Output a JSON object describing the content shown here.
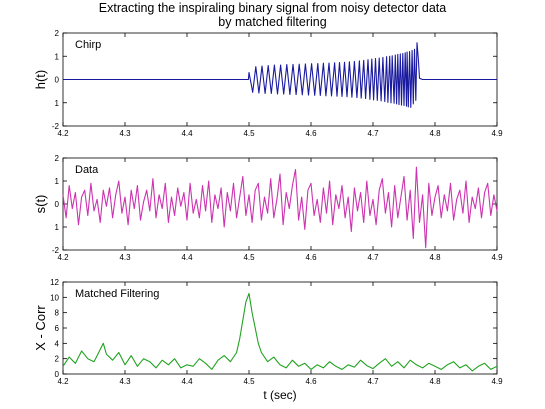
{
  "title": [
    "Extracting the inspiraling binary signal from noisy detector data",
    "by matched filtering"
  ],
  "xlabel": "t (sec)",
  "chart_data": [
    {
      "type": "line",
      "annotation": "Chirp",
      "ylabel": "h(t)",
      "color": "#1a1aa0",
      "xlim": [
        4.2,
        4.9
      ],
      "ylim": [
        -2,
        2
      ],
      "xticks": [
        "4.2",
        "4.3",
        "4.4",
        "4.5",
        "4.6",
        "4.7",
        "4.8",
        "4.9"
      ],
      "yticks": [
        "-2",
        "1",
        "0",
        "1",
        "2"
      ],
      "series": [
        {
          "x": [
            4.2,
            4.499,
            4.5,
            4.506,
            4.511,
            4.516,
            4.521,
            4.526,
            4.531,
            4.536,
            4.541,
            4.546,
            4.551,
            4.556,
            4.561,
            4.566,
            4.571,
            4.576,
            4.581,
            4.586,
            4.591,
            4.596,
            4.601,
            4.606,
            4.611,
            4.615,
            4.62,
            4.624,
            4.629,
            4.633,
            4.638,
            4.642,
            4.646,
            4.65,
            4.654,
            4.658,
            4.662,
            4.666,
            4.67,
            4.674,
            4.678,
            4.681,
            4.685,
            4.688,
            4.692,
            4.695,
            4.698,
            4.701,
            4.704,
            4.707,
            4.71,
            4.713,
            4.716,
            4.719,
            4.722,
            4.724,
            4.727,
            4.729,
            4.731,
            4.734,
            4.736,
            4.738,
            4.74,
            4.742,
            4.744,
            4.746,
            4.748,
            4.75,
            4.752,
            4.754,
            4.755,
            4.757,
            4.759,
            4.761,
            4.763,
            4.765,
            4.767,
            4.769,
            4.771,
            4.773,
            4.775,
            4.78,
            4.9
          ],
          "y": [
            0,
            0,
            0.3,
            -0.55,
            0.55,
            -0.58,
            0.58,
            -0.6,
            0.6,
            -0.6,
            0.62,
            -0.62,
            0.62,
            -0.63,
            0.64,
            -0.64,
            0.65,
            -0.65,
            0.66,
            -0.66,
            0.67,
            -0.67,
            0.68,
            -0.68,
            0.69,
            -0.69,
            0.7,
            -0.7,
            0.71,
            -0.71,
            0.72,
            -0.72,
            0.73,
            -0.73,
            0.74,
            -0.74,
            0.76,
            -0.76,
            0.78,
            -0.78,
            0.8,
            -0.8,
            0.82,
            -0.82,
            0.85,
            -0.85,
            0.88,
            -0.88,
            0.9,
            -0.9,
            0.92,
            -0.92,
            0.95,
            -0.95,
            0.98,
            -0.98,
            1.0,
            -1.0,
            1.02,
            -1.02,
            1.05,
            -1.05,
            1.08,
            -1.08,
            1.1,
            -1.1,
            1.12,
            -1.12,
            1.15,
            -1.15,
            1.18,
            -1.18,
            1.2,
            -1.2,
            1.25,
            -1.05,
            1.3,
            -0.9,
            1.58,
            0.9,
            0.05,
            0,
            0
          ]
        }
      ]
    },
    {
      "type": "line",
      "annotation": "Data",
      "ylabel": "s(t)",
      "color": "#cc33b0",
      "xlim": [
        4.2,
        4.9
      ],
      "ylim": [
        -2,
        2
      ],
      "xticks": [
        "4.2",
        "4.3",
        "4.4",
        "4.5",
        "4.6",
        "4.7",
        "4.8",
        "4.9"
      ],
      "yticks": [
        "-2",
        "1",
        "0",
        "1",
        "2"
      ],
      "series": [
        {
          "x": [
            4.2,
            4.205,
            4.21,
            4.215,
            4.22,
            4.225,
            4.23,
            4.235,
            4.24,
            4.245,
            4.25,
            4.255,
            4.26,
            4.265,
            4.27,
            4.275,
            4.28,
            4.285,
            4.29,
            4.295,
            4.3,
            4.305,
            4.31,
            4.315,
            4.32,
            4.325,
            4.33,
            4.335,
            4.34,
            4.345,
            4.35,
            4.355,
            4.36,
            4.365,
            4.37,
            4.375,
            4.38,
            4.385,
            4.39,
            4.395,
            4.4,
            4.405,
            4.41,
            4.415,
            4.42,
            4.425,
            4.43,
            4.435,
            4.44,
            4.445,
            4.45,
            4.455,
            4.46,
            4.465,
            4.47,
            4.475,
            4.48,
            4.485,
            4.49,
            4.495,
            4.5,
            4.505,
            4.51,
            4.515,
            4.52,
            4.525,
            4.53,
            4.535,
            4.54,
            4.545,
            4.55,
            4.555,
            4.56,
            4.565,
            4.57,
            4.575,
            4.58,
            4.585,
            4.59,
            4.595,
            4.6,
            4.605,
            4.61,
            4.615,
            4.62,
            4.625,
            4.63,
            4.635,
            4.64,
            4.645,
            4.65,
            4.655,
            4.66,
            4.665,
            4.67,
            4.675,
            4.68,
            4.685,
            4.69,
            4.695,
            4.7,
            4.705,
            4.71,
            4.715,
            4.72,
            4.725,
            4.73,
            4.735,
            4.74,
            4.745,
            4.75,
            4.755,
            4.76,
            4.765,
            4.77,
            4.775,
            4.78,
            4.785,
            4.79,
            4.795,
            4.8,
            4.805,
            4.81,
            4.815,
            4.82,
            4.825,
            4.83,
            4.835,
            4.84,
            4.845,
            4.85,
            4.855,
            4.86,
            4.865,
            4.87,
            4.875,
            4.88,
            4.885,
            4.89,
            4.895,
            4.9
          ],
          "y": [
            0.4,
            -0.6,
            0.8,
            -0.2,
            0.5,
            -0.9,
            0.3,
            0.6,
            -0.5,
            0.9,
            -0.3,
            0.2,
            -0.8,
            0.6,
            -0.1,
            0.7,
            -0.6,
            0.4,
            1.0,
            -0.4,
            0.3,
            -0.9,
            0.6,
            -0.2,
            0.8,
            -0.7,
            0.1,
            0.6,
            -0.3,
            1.1,
            -0.6,
            0.4,
            -0.2,
            0.9,
            -0.8,
            0.3,
            -0.5,
            0.7,
            -0.1,
            0.5,
            -0.7,
            0.9,
            -0.4,
            0.2,
            -0.6,
            0.8,
            -0.3,
            1.0,
            -0.8,
            0.4,
            -0.2,
            0.7,
            -1.0,
            0.5,
            -0.3,
            0.9,
            -0.6,
            0.3,
            1.2,
            -0.5,
            0.4,
            -0.8,
            0.6,
            0.9,
            -0.7,
            0.3,
            -0.4,
            1.1,
            -0.6,
            0.2,
            1.3,
            -0.9,
            0.5,
            -0.2,
            0.8,
            1.5,
            -0.7,
            0.3,
            -1.1,
            0.6,
            0.9,
            -0.5,
            0.2,
            -0.8,
            0.7,
            -0.4,
            1.0,
            -0.9,
            0.4,
            -0.2,
            0.8,
            -0.6,
            0.3,
            -1.2,
            0.7,
            -0.3,
            0.5,
            -0.8,
            1.0,
            -0.5,
            0.2,
            -0.9,
            0.6,
            1.1,
            -0.4,
            0.5,
            -1.0,
            0.8,
            -0.6,
            0.3,
            1.2,
            -0.7,
            0.6,
            -1.5,
            1.6,
            -0.8,
            0.4,
            -1.9,
            0.9,
            -0.5,
            0.3,
            0.8,
            -0.6,
            0.4,
            -0.3,
            0.9,
            -0.7,
            0.2,
            0.6,
            -0.4,
            1.0,
            -0.8,
            0.3,
            -0.2,
            0.7,
            -0.6,
            0.5,
            0.9,
            -0.5,
            0.4,
            -0.3
          ]
        }
      ]
    },
    {
      "type": "line",
      "annotation": "Matched Filtering",
      "ylabel": "X - Corr",
      "color": "#22a322",
      "xlim": [
        4.2,
        4.9
      ],
      "ylim": [
        0,
        12
      ],
      "xticks": [
        "4.2",
        "4.3",
        "4.4",
        "4.5",
        "4.6",
        "4.7",
        "4.8",
        "4.9"
      ],
      "yticks": [
        "0",
        "2",
        "4",
        "6",
        "8",
        "10",
        "12"
      ],
      "series": [
        {
          "x": [
            4.2,
            4.21,
            4.22,
            4.23,
            4.24,
            4.25,
            4.26,
            4.265,
            4.27,
            4.28,
            4.29,
            4.3,
            4.31,
            4.32,
            4.33,
            4.34,
            4.35,
            4.36,
            4.37,
            4.38,
            4.39,
            4.4,
            4.41,
            4.42,
            4.43,
            4.44,
            4.45,
            4.46,
            4.47,
            4.48,
            4.485,
            4.49,
            4.495,
            4.5,
            4.505,
            4.51,
            4.515,
            4.52,
            4.53,
            4.54,
            4.55,
            4.56,
            4.57,
            4.58,
            4.59,
            4.6,
            4.61,
            4.62,
            4.63,
            4.64,
            4.65,
            4.66,
            4.67,
            4.68,
            4.69,
            4.7,
            4.71,
            4.72,
            4.73,
            4.74,
            4.75,
            4.76,
            4.77,
            4.78,
            4.79,
            4.8,
            4.81,
            4.82,
            4.83,
            4.84,
            4.85,
            4.86,
            4.87,
            4.88,
            4.89,
            4.9
          ],
          "y": [
            1.0,
            2.2,
            1.4,
            3.0,
            2.0,
            1.6,
            3.2,
            4.0,
            2.6,
            1.8,
            2.8,
            1.2,
            2.4,
            1.0,
            2.0,
            1.6,
            0.8,
            1.8,
            1.2,
            2.0,
            0.8,
            1.2,
            1.0,
            2.0,
            1.4,
            0.6,
            1.8,
            2.4,
            1.6,
            2.8,
            4.6,
            7.0,
            9.4,
            10.5,
            8.0,
            6.0,
            4.0,
            2.8,
            1.6,
            2.2,
            1.2,
            0.8,
            1.8,
            1.0,
            1.4,
            0.6,
            1.2,
            0.8,
            1.6,
            1.0,
            0.6,
            1.2,
            0.9,
            1.8,
            1.1,
            0.7,
            1.4,
            2.0,
            1.0,
            1.6,
            0.8,
            1.8,
            1.2,
            0.8,
            1.4,
            1.0,
            0.6,
            1.2,
            1.6,
            0.8,
            1.2,
            0.4,
            1.0,
            1.4,
            0.6,
            1.0
          ]
        }
      ]
    }
  ]
}
